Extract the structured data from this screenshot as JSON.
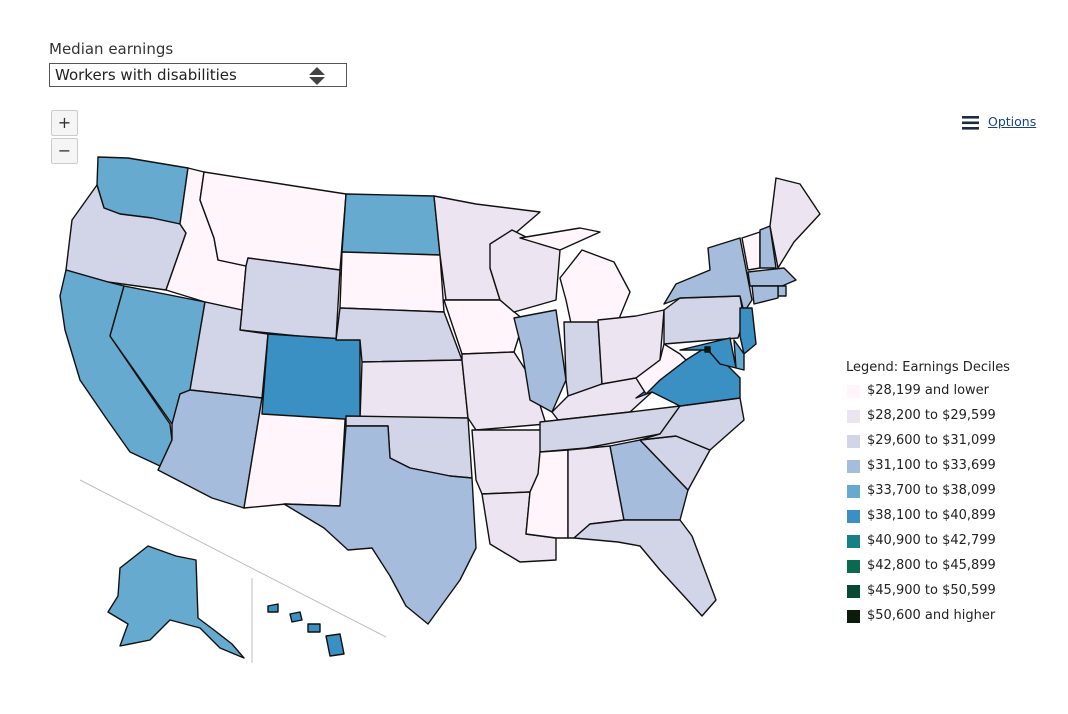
{
  "metric": {
    "label": "Median earnings",
    "selected": "Workers with disabilities"
  },
  "zoom": {
    "in_label": "+",
    "out_label": "−"
  },
  "options_label": "Options",
  "legend": {
    "title": "Legend: Earnings Deciles",
    "items": [
      {
        "label": "$28,199 and lower",
        "color": "#fff5fa"
      },
      {
        "label": "$28,200 to $29,599",
        "color": "#ece4f1"
      },
      {
        "label": "$29,600 to $31,099",
        "color": "#d2d4e8"
      },
      {
        "label": "$31,100 to $33,699",
        "color": "#a5bcdc"
      },
      {
        "label": "$33,700 to $38,099",
        "color": "#66aad0"
      },
      {
        "label": "$38,100 to $40,899",
        "color": "#3a8fc3"
      },
      {
        "label": "$40,900 to $42,799",
        "color": "#168087"
      },
      {
        "label": "$42,800 to $45,899",
        "color": "#0a6a50"
      },
      {
        "label": "$45,900 to $50,599",
        "color": "#064a36"
      },
      {
        "label": "$50,600 and higher",
        "color": "#0b1c0c"
      }
    ]
  },
  "states": {
    "WA": 4,
    "OR": 2,
    "CA": 4,
    "NV": 4,
    "ID": 0,
    "MT": 0,
    "WY": 2,
    "UT": 2,
    "AZ": 3,
    "NM": 0,
    "CO": 5,
    "ND": 4,
    "SD": 0,
    "NE": 2,
    "KS": 1,
    "OK": 2,
    "TX": 3,
    "MN": 1,
    "IA": 0,
    "MO": 1,
    "AR": 1,
    "LA": 1,
    "WI": 1,
    "IL": 3,
    "MI": 0,
    "IN": 2,
    "OH": 1,
    "KY": 1,
    "TN": 2,
    "MS": 0,
    "AL": 1,
    "GA": 3,
    "FL": 2,
    "SC": 2,
    "NC": 2,
    "VA": 5,
    "WV": 0,
    "PA": 2,
    "NY": 3,
    "VT": 0,
    "NH": 3,
    "ME": 1,
    "MA": 3,
    "RI": 3,
    "CT": 3,
    "NJ": 5,
    "DE": 4,
    "MD": 5,
    "DC": 9,
    "AK": 4,
    "HI": 5
  }
}
